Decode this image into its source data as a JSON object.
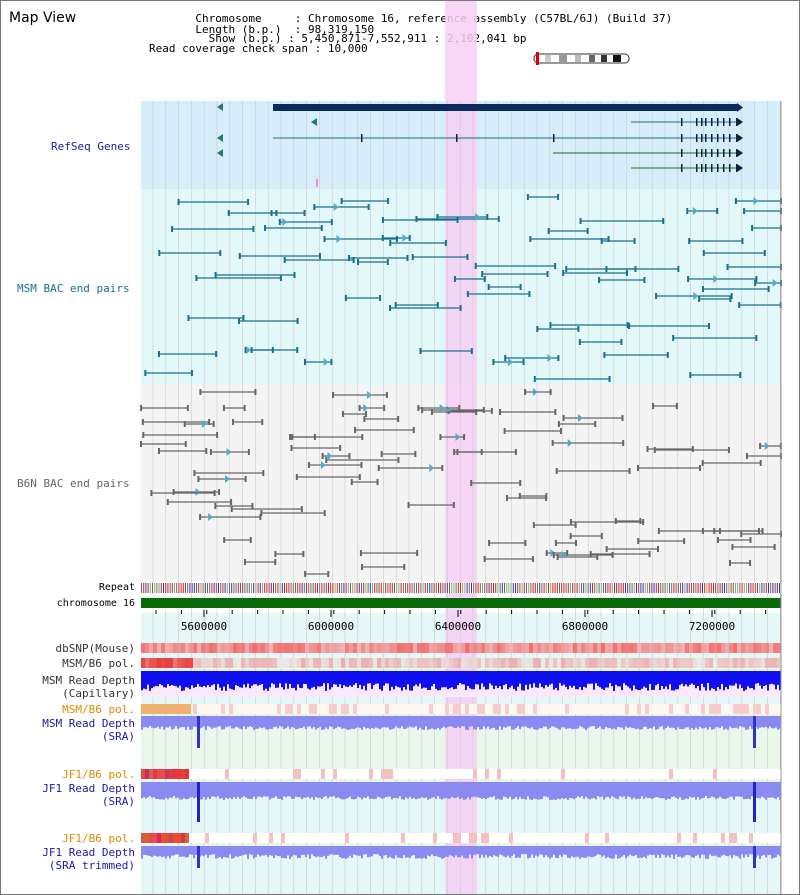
{
  "header": {
    "title": "Map View",
    "chromosome_label": "Chromosome",
    "chromosome_value": "Chromosome 16, reference assembly (C57BL/6J) (Build 37)",
    "length_label": "Length (b.p.)",
    "length_value": "98,319,150",
    "show_label": "Show (b.p.)",
    "show_value": "5,450,871-7,552,911 : 2,102,041 bp",
    "span_label": "Read coverage check span",
    "span_value": "10,000"
  },
  "tracks": {
    "refseq": "RefSeq Genes",
    "msm_bac": "MSM BAC end pairs",
    "b6n_bac": "B6N BAC end pairs",
    "repeat": "Repeat",
    "chromosome": "chromosome 16",
    "dbsnp": "dbSNP(Mouse)",
    "msm_pol": "MSM/B6 pol.",
    "msm_depth_cap_1": "MSM Read Depth",
    "msm_depth_cap_2": "(Capillary)",
    "msm_pol_sra": "MSM/B6 pol.",
    "msm_depth_sra_1": "MSM Read Depth",
    "msm_depth_sra_2": "(SRA)",
    "jf1_pol": "JF1/B6 pol.",
    "jf1_depth_1": "JF1 Read Depth",
    "jf1_depth_2": "(SRA)",
    "jf1_pol_trim": "JF1/B6 pol.",
    "jf1_depth_trim_1": "JF1 Read Depth",
    "jf1_depth_trim_2": "(SRA trimmed)"
  },
  "axis": {
    "ticks": [
      "5600000",
      "6000000",
      "6400000",
      "6800000",
      "7200000"
    ]
  },
  "colors": {
    "refseq_bg": "#d6eef9",
    "msm_bg": "#e3f8f8",
    "b6n_bg": "#f4f4f4",
    "highlight": "#f6cff6",
    "gene_dark": "#0a2a5e",
    "gene_line": "#1f6a8a",
    "msm_pair": "#1a6f8e",
    "b6n_pair": "#666666",
    "chromosome_bar": "#0a6b0a",
    "depth_blue": "#1010ee",
    "depth_light": "#8a8af0"
  }
}
